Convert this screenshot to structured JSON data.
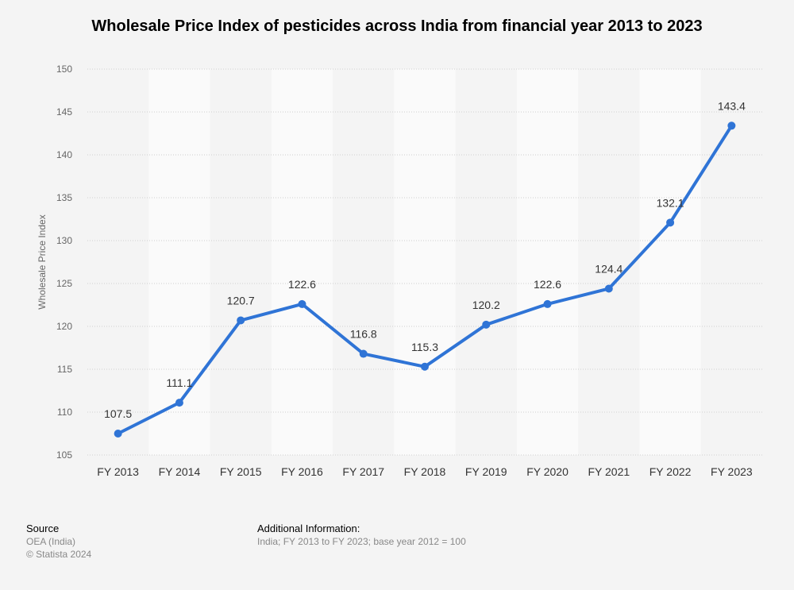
{
  "chart_data": {
    "type": "line",
    "title": "Wholesale Price Index of pesticides across India from financial year 2013 to 2023",
    "ylabel": "Wholesale Price Index",
    "xlabel": "",
    "categories": [
      "FY 2013",
      "FY 2014",
      "FY 2015",
      "FY 2016",
      "FY 2017",
      "FY 2018",
      "FY 2019",
      "FY 2020",
      "FY 2021",
      "FY 2022",
      "FY 2023"
    ],
    "values": [
      107.5,
      111.1,
      120.7,
      122.6,
      116.8,
      115.3,
      120.2,
      122.6,
      124.4,
      132.1,
      143.4
    ],
    "ylim": [
      105,
      150
    ],
    "yticks": [
      105,
      110,
      115,
      120,
      125,
      130,
      135,
      140,
      145,
      150
    ],
    "grid": true,
    "line_color": "#2f74d6"
  },
  "footer": {
    "source_heading": "Source",
    "source_lines": [
      "OEA (India)",
      "© Statista 2024"
    ],
    "info_heading": "Additional Information:",
    "info_text": "India; FY 2013 to FY 2023; base year 2012 = 100"
  }
}
